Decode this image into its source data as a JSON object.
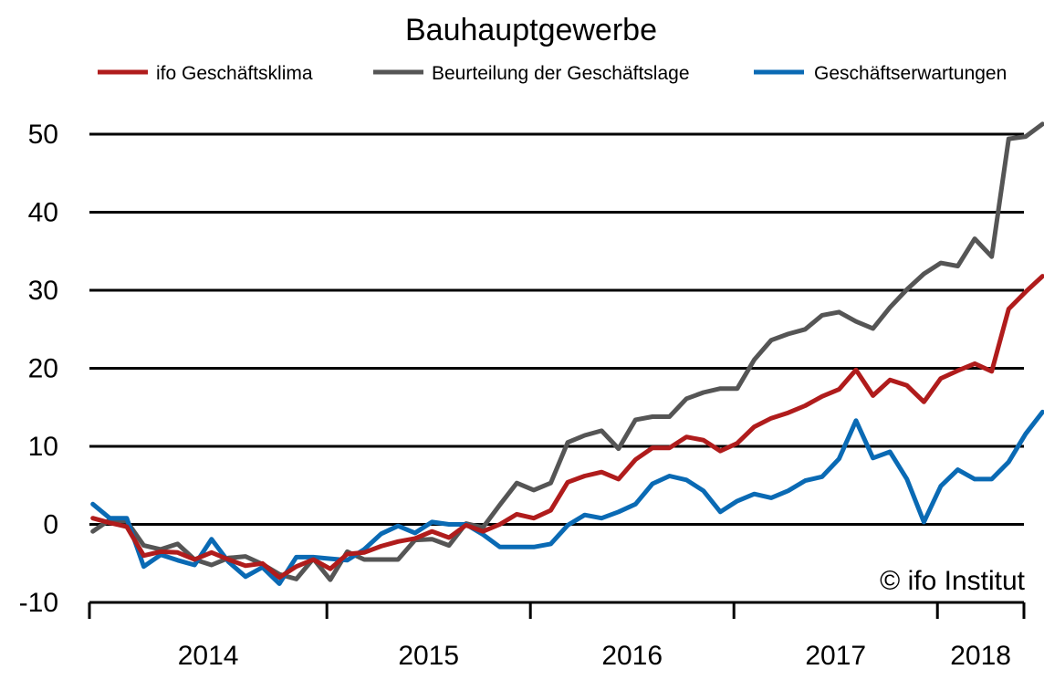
{
  "chart_data": {
    "type": "line",
    "title": "Bauhauptgewerbe",
    "copyright": "© ifo Institut",
    "ylim": [
      -10,
      50
    ],
    "yticks": [
      -10,
      0,
      10,
      20,
      30,
      40,
      50
    ],
    "grid": "horizontal",
    "legend_position": "top",
    "x_start": "2013-11",
    "x_end": "2018-06",
    "xtick_labels": [
      "2014",
      "2015",
      "2016",
      "2017",
      "2018"
    ],
    "series": [
      {
        "name": "ifo Geschäftsklima",
        "color": "#b01c1c",
        "values": [
          0.8,
          0.2,
          -0.3,
          -4.0,
          -3.5,
          -3.6,
          -4.5,
          -3.6,
          -4.5,
          -5.3,
          -5.0,
          -6.8,
          -5.4,
          -4.5,
          -5.7,
          -3.8,
          -3.6,
          -2.8,
          -2.2,
          -1.8,
          -0.9,
          -1.7,
          -0.1,
          -0.9,
          0.0,
          1.3,
          0.8,
          1.8,
          5.4,
          6.2,
          6.7,
          5.8,
          8.3,
          9.8,
          9.8,
          11.2,
          10.8,
          9.4,
          10.4,
          12.5,
          13.6,
          14.3,
          15.2,
          16.4,
          17.3,
          19.8,
          16.5,
          18.5,
          17.8,
          15.7,
          18.7,
          19.7,
          20.6,
          19.6,
          27.6,
          29.8,
          31.8
        ]
      },
      {
        "name": "Beurteilung der Geschäftslage",
        "color": "#555555",
        "values": [
          -0.9,
          0.6,
          0.4,
          -2.7,
          -3.2,
          -2.5,
          -4.5,
          -5.2,
          -4.3,
          -4.1,
          -5.1,
          -6.4,
          -7.0,
          -4.4,
          -7.1,
          -3.5,
          -4.5,
          -4.5,
          -4.5,
          -2.0,
          -1.9,
          -2.7,
          0.1,
          -0.4,
          2.5,
          5.3,
          4.4,
          5.3,
          10.5,
          11.4,
          12.0,
          9.7,
          13.4,
          13.8,
          13.8,
          16.1,
          16.9,
          17.4,
          17.4,
          21.1,
          23.6,
          24.4,
          25.0,
          26.8,
          27.2,
          26.0,
          25.1,
          27.8,
          30.1,
          32.1,
          33.5,
          33.1,
          36.6,
          34.3,
          49.4,
          49.7,
          51.3
        ]
      },
      {
        "name": "Geschäftserwartungen",
        "color": "#0a6ab4",
        "values": [
          2.6,
          0.8,
          0.8,
          -5.4,
          -3.9,
          -4.6,
          -5.2,
          -1.9,
          -4.8,
          -6.7,
          -5.5,
          -7.6,
          -4.2,
          -4.2,
          -4.4,
          -4.6,
          -3.2,
          -1.2,
          -0.2,
          -1.1,
          0.3,
          0.0,
          0.0,
          -1.3,
          -2.9,
          -2.9,
          -2.9,
          -2.5,
          -0.1,
          1.2,
          0.8,
          1.6,
          2.6,
          5.2,
          6.2,
          5.7,
          4.3,
          1.6,
          3.0,
          3.9,
          3.4,
          4.3,
          5.6,
          6.1,
          8.4,
          13.3,
          8.5,
          9.3,
          5.8,
          0.3,
          4.9,
          7.0,
          5.8,
          5.8,
          8.0,
          11.6,
          14.4
        ]
      }
    ]
  }
}
